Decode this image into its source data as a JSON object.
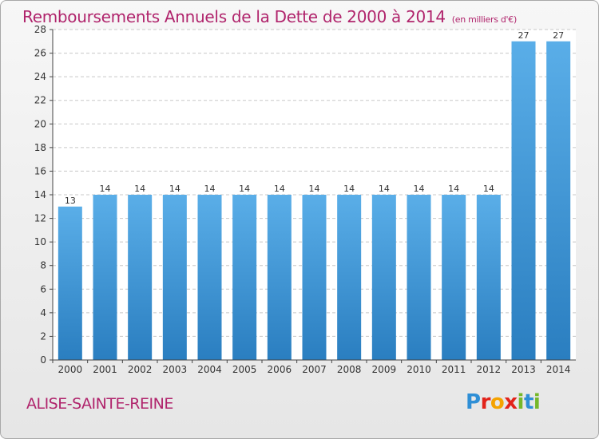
{
  "title": "Remboursements Annuels de la Dette de 2000 à 2014",
  "unit": "(en milliers d'€)",
  "place": "ALISE-SAINTE-REINE",
  "logo": {
    "text": "Proxiti",
    "letters": [
      {
        "ch": "P",
        "color": "#2f8fd6"
      },
      {
        "ch": "r",
        "color": "#e2231a"
      },
      {
        "ch": "o",
        "color": "#f5a300"
      },
      {
        "ch": "x",
        "color": "#e2231a"
      },
      {
        "ch": "i",
        "color": "#76b82a"
      },
      {
        "ch": "t",
        "color": "#2f8fd6"
      },
      {
        "ch": "i",
        "color": "#76b82a"
      }
    ]
  },
  "colors": {
    "title": "#b0246c",
    "bar_top": "#5aaee8",
    "bar_bottom": "#2a7ec0",
    "grid": "#c8c8c8",
    "axis": "#444444"
  },
  "chart_data": {
    "type": "bar",
    "categories": [
      "2000",
      "2001",
      "2002",
      "2003",
      "2004",
      "2005",
      "2006",
      "2007",
      "2008",
      "2009",
      "2010",
      "2011",
      "2012",
      "2013",
      "2014"
    ],
    "values": [
      13,
      14,
      14,
      14,
      14,
      14,
      14,
      14,
      14,
      14,
      14,
      14,
      14,
      27,
      27
    ],
    "data_labels": [
      "13",
      "14",
      "14",
      "14",
      "14",
      "14",
      "14",
      "14",
      "14",
      "14",
      "14",
      "14",
      "14",
      "27",
      "27"
    ],
    "yticks": [
      0,
      2,
      4,
      6,
      8,
      10,
      12,
      14,
      16,
      18,
      20,
      22,
      24,
      26,
      28
    ],
    "ylim": [
      0,
      28
    ],
    "grid": true,
    "legend": "none"
  }
}
